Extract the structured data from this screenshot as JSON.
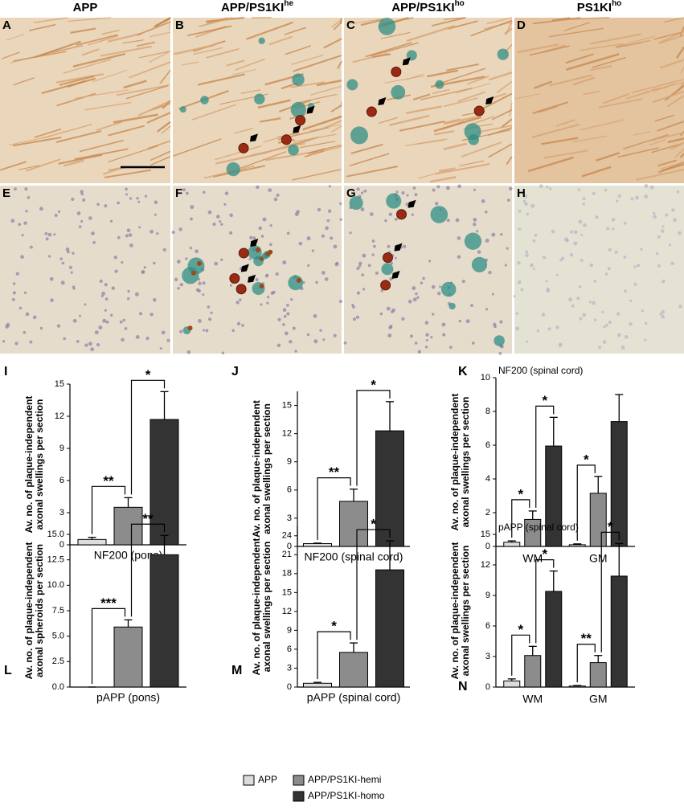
{
  "image_panels": {
    "column_headers": [
      {
        "text": "APP"
      },
      {
        "text": "APP/PS1KI",
        "sup": "he"
      },
      {
        "text": "APP/PS1KI",
        "sup": "ho"
      },
      {
        "text": "PS1KI",
        "sup": "ho"
      }
    ],
    "labels": [
      "A",
      "B",
      "C",
      "D",
      "E",
      "F",
      "G",
      "H"
    ]
  },
  "chart_data": [
    {
      "type": "bar",
      "label": "I",
      "ylabel": [
        "Av. no. of plaque-independent",
        "axonal swellings per section"
      ],
      "xlabel": "NF200  (pons)",
      "ylim": [
        0,
        15
      ],
      "yticks": [
        0,
        3,
        6,
        9,
        12,
        15
      ],
      "series": [
        {
          "name": "APP",
          "color": "#dcdcdc",
          "values": [
            0.5
          ],
          "errors": [
            0.2
          ]
        },
        {
          "name": "APP/PS1KI-hemi",
          "color": "#8c8c8c",
          "values": [
            3.5
          ],
          "errors": [
            0.9
          ]
        },
        {
          "name": "APP/PS1KI-homo",
          "color": "#333333",
          "values": [
            11.7
          ],
          "errors": [
            2.6
          ]
        }
      ],
      "annotations": [
        "**",
        "*"
      ]
    },
    {
      "type": "bar",
      "label": "J",
      "ylabel": [
        "Av. no. of plaque-independent",
        "axonal swellings per section"
      ],
      "xlabel": "NF200 (spinal cord)",
      "ylim": [
        0,
        16.5
      ],
      "yticks": [
        0,
        3,
        6,
        9,
        12,
        15
      ],
      "series": [
        {
          "color": "#dcdcdc",
          "values": [
            0.3
          ],
          "errors": [
            0.05
          ]
        },
        {
          "color": "#8c8c8c",
          "values": [
            4.8
          ],
          "errors": [
            1.3
          ]
        },
        {
          "color": "#333333",
          "values": [
            12.3
          ],
          "errors": [
            3.1
          ]
        }
      ],
      "annotations": [
        "**",
        "*"
      ]
    },
    {
      "type": "bar",
      "label": "K",
      "title": "NF200 (spinal cord)",
      "ylabel": [
        "Av. no. of plaque-independent",
        "axonal swellings per section"
      ],
      "categories": [
        "WM",
        "GM"
      ],
      "ylim": [
        0,
        10
      ],
      "yticks": [
        0,
        2,
        4,
        6,
        8,
        10
      ],
      "series": [
        {
          "color": "#dcdcdc",
          "values": [
            0.25,
            0.1
          ],
          "errors": [
            0.08,
            0.05
          ]
        },
        {
          "color": "#8c8c8c",
          "values": [
            1.6,
            3.15
          ],
          "errors": [
            0.5,
            1.0
          ]
        },
        {
          "color": "#333333",
          "values": [
            5.95,
            7.4
          ],
          "errors": [
            1.7,
            1.6
          ]
        }
      ],
      "annotations": [
        "*",
        "*",
        "*"
      ]
    },
    {
      "type": "bar",
      "label": "L",
      "ylabel": [
        "Av. no. of plaque-independent",
        "axonal spheroids per section"
      ],
      "xlabel": "pAPP  (pons)",
      "ylim": [
        0,
        15
      ],
      "yticks": [
        {
          "value": 0,
          "label": "0.0"
        },
        {
          "value": 2.5,
          "label": "2.5"
        },
        {
          "value": 5,
          "label": "5.0"
        },
        {
          "value": 7.5,
          "label": "7.5"
        },
        {
          "value": 10,
          "label": "10.0"
        },
        {
          "value": 12.5,
          "label": "12.5"
        },
        {
          "value": 15,
          "label": "15.0"
        }
      ],
      "series": [
        {
          "color": "#dcdcdc",
          "values": [
            0
          ],
          "errors": [
            0
          ]
        },
        {
          "color": "#8c8c8c",
          "values": [
            5.9
          ],
          "errors": [
            0.7
          ]
        },
        {
          "color": "#333333",
          "values": [
            13.0
          ],
          "errors": [
            1.9
          ]
        }
      ],
      "annotations": [
        "***",
        "**"
      ]
    },
    {
      "type": "bar",
      "label": "M",
      "ylabel": [
        "Av. no. of plaque-independent",
        "axonal swellings per section"
      ],
      "xlabel": "pAPP (spinal cord)",
      "ylim": [
        0,
        25.5
      ],
      "yticks": [
        0,
        3,
        6,
        9,
        12,
        15,
        18,
        21,
        24
      ],
      "series": [
        {
          "color": "#dcdcdc",
          "values": [
            0.6
          ],
          "errors": [
            0.15
          ]
        },
        {
          "color": "#8c8c8c",
          "values": [
            5.5
          ],
          "errors": [
            1.5
          ]
        },
        {
          "color": "#333333",
          "values": [
            18.6
          ],
          "errors": [
            4.6
          ]
        }
      ],
      "annotations": [
        "*",
        "*"
      ]
    },
    {
      "type": "bar",
      "label": "N",
      "title": "pAPP (spinal  cord)",
      "ylabel": [
        "Av. no. of plaque-independent",
        "axonal swellings per section"
      ],
      "categories": [
        "WM",
        "GM"
      ],
      "ylim": [
        0,
        15
      ],
      "yticks": [
        0,
        3,
        6,
        9,
        12,
        15
      ],
      "series": [
        {
          "color": "#dcdcdc",
          "values": [
            0.6,
            0.1
          ],
          "errors": [
            0.2,
            0.05
          ]
        },
        {
          "color": "#8c8c8c",
          "values": [
            3.1,
            2.4
          ],
          "errors": [
            0.9,
            0.7
          ]
        },
        {
          "color": "#333333",
          "values": [
            9.4,
            10.9
          ],
          "errors": [
            2.0,
            3.2
          ]
        }
      ],
      "annotations": [
        "*",
        "*",
        "**",
        "*"
      ]
    }
  ]
}
